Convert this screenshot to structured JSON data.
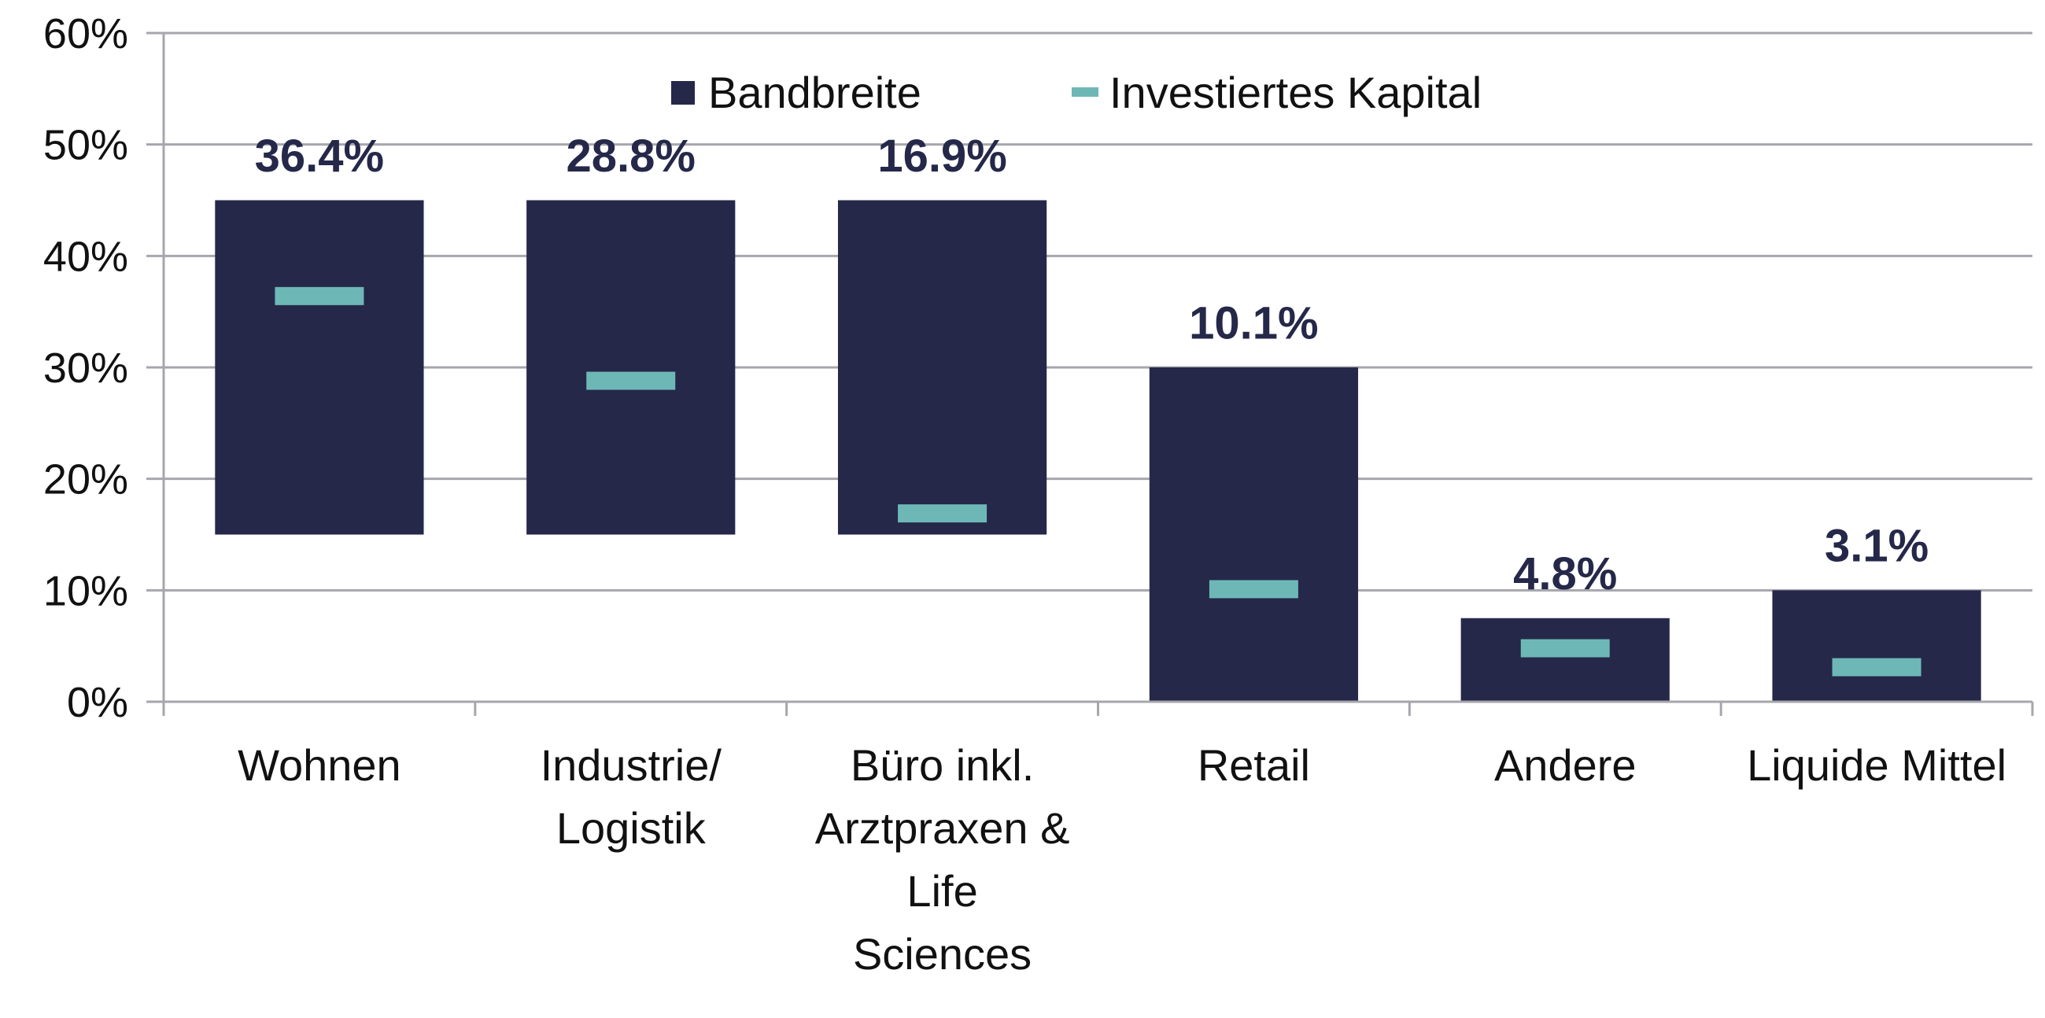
{
  "chart_data": {
    "type": "bar",
    "title": "",
    "xlabel": "",
    "ylabel": "",
    "ylim": [
      0,
      60
    ],
    "yticks": [
      "0%",
      "10%",
      "20%",
      "30%",
      "40%",
      "50%",
      "60%"
    ],
    "yticks_values": [
      0,
      10,
      20,
      30,
      40,
      50,
      60
    ],
    "grid": true,
    "legend_position": "top-center",
    "categories": [
      [
        "Wohnen"
      ],
      [
        "Industrie/",
        "Logistik"
      ],
      [
        "Büro inkl.",
        "Arztpraxen &",
        "Life",
        "Sciences"
      ],
      [
        "Retail"
      ],
      [
        "Andere"
      ],
      [
        "Liquide Mittel"
      ]
    ],
    "series": [
      {
        "name": "Bandbreite",
        "type": "floating-bar",
        "color": "#252849",
        "low": [
          15,
          15,
          15,
          0,
          0,
          0
        ],
        "high": [
          45,
          45,
          45,
          30,
          7.5,
          10
        ]
      },
      {
        "name": "Investiertes Kapital",
        "type": "marker",
        "color": "#6db8b7",
        "values": [
          36.4,
          28.8,
          16.9,
          10.1,
          4.8,
          3.1
        ],
        "labels": [
          "36.4%",
          "28.8%",
          "16.9%",
          "10.1%",
          "4.8%",
          "3.1%"
        ]
      }
    ]
  }
}
